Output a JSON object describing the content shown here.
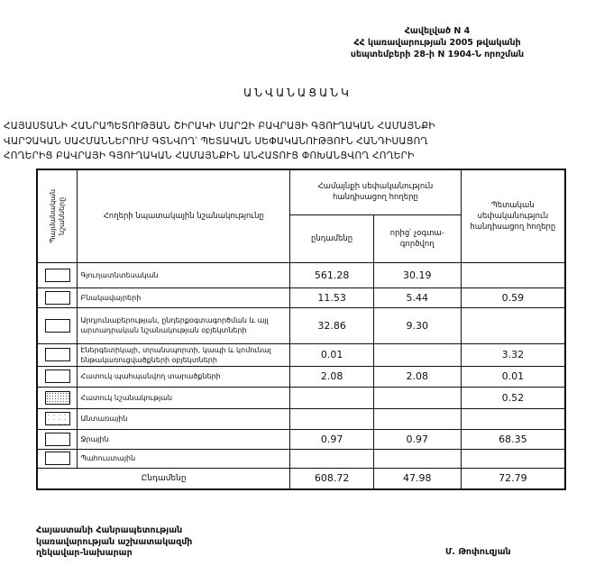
{
  "annex": {
    "line1": "Հավելված N 4",
    "line2": "ՀՀ կառավարության 2005 թվականի",
    "line3": "սեպտեմբերի 28-ի N 1904-Ն որոշման"
  },
  "title": "ԱՆՎԱՆԱՑԱՆԿ",
  "subtitle": [
    "ՀԱՅԱՍՏԱՆԻ ՀԱՆՐԱՊԵՏՈՒԹՅԱՆ ՇԻՐԱԿԻ ՄԱՐԶԻ ԲԱՎՐԱՅԻ ԳՅՈՒՂԱԿԱՆ ՀԱՄԱՅՆՔԻ",
    "ՎԱՐՉԱԿԱՆ ՍԱՀՄԱՆՆԵՐՈՒՄ ԳՏՆՎՈՂ՝ ՊԵՏԱԿԱՆ ՍԵՓԱԿԱՆՈՒԹՅՈՒՆ ՀԱՆԴԻՍԱՑՈՂ",
    "ՀՈՂԵՐԻՑ ԲԱՎՐԱՅԻ ԳՅՈՒՂԱԿԱՆ ՀԱՄԱՅՆՔԻՆ ԱՆՀԱՏՈՒՑ ՓՈԽԱՆՑՎՈՂ ՀՈՂԵՐԻ"
  ],
  "table": {
    "headers": {
      "legend": "Պայմանական նշանները",
      "purpose": "Հողերի նպատակային նշանակությունը",
      "community": "Համայնքի սեփականություն հանդիսացող հողերը",
      "total": "ընդամենը",
      "unused": "որից՝ չօգտա-գործվող",
      "state": "Պետական սեփականություն հանդիսացող հողերը"
    },
    "rows": [
      {
        "label": "Գյուղատնտեսական",
        "total": "561.28",
        "unused": "30.19",
        "state": "",
        "pattern": "plain"
      },
      {
        "label": "Բնակավայրերի",
        "total": "11.53",
        "unused": "5.44",
        "state": "0.59",
        "pattern": "plain"
      },
      {
        "label": "Արդյունաբերության, ընդերքօգտագործման և այլ արտադրական նշանակության օբյեկտների",
        "total": "32.86",
        "unused": "9.30",
        "state": "",
        "pattern": "plain"
      },
      {
        "label": "Էներգետիկայի, տրանսպորտի, կապի և կոմունալ ենթակառուցվածքների օբյեկտների",
        "total": "0.01",
        "unused": "",
        "state": "3.32",
        "pattern": "plain"
      },
      {
        "label": "Հատուկ պահպանվող տարածքների",
        "total": "2.08",
        "unused": "2.08",
        "state": "0.01",
        "pattern": "plain"
      },
      {
        "label": "Հատուկ նշանակության",
        "total": "",
        "unused": "",
        "state": "0.52",
        "pattern": "dotted"
      },
      {
        "label": "Անտառային",
        "total": "",
        "unused": "",
        "state": "",
        "pattern": "sparse-dots"
      },
      {
        "label": "Ջրային",
        "total": "0.97",
        "unused": "0.97",
        "state": "68.35",
        "pattern": "plain"
      },
      {
        "label": "Պահուստային",
        "total": "",
        "unused": "",
        "state": "",
        "pattern": "plain"
      }
    ],
    "sum": {
      "label": "Ընդամենը",
      "total": "608.72",
      "unused": "47.98",
      "state": "72.79"
    }
  },
  "footer": {
    "line1": "Հայաստանի Հանրապետության",
    "line2": "կառավարության աշխատակազմի",
    "line3": "ղեկավար-նախարար",
    "signer": "Մ. Թոփուզյան"
  }
}
